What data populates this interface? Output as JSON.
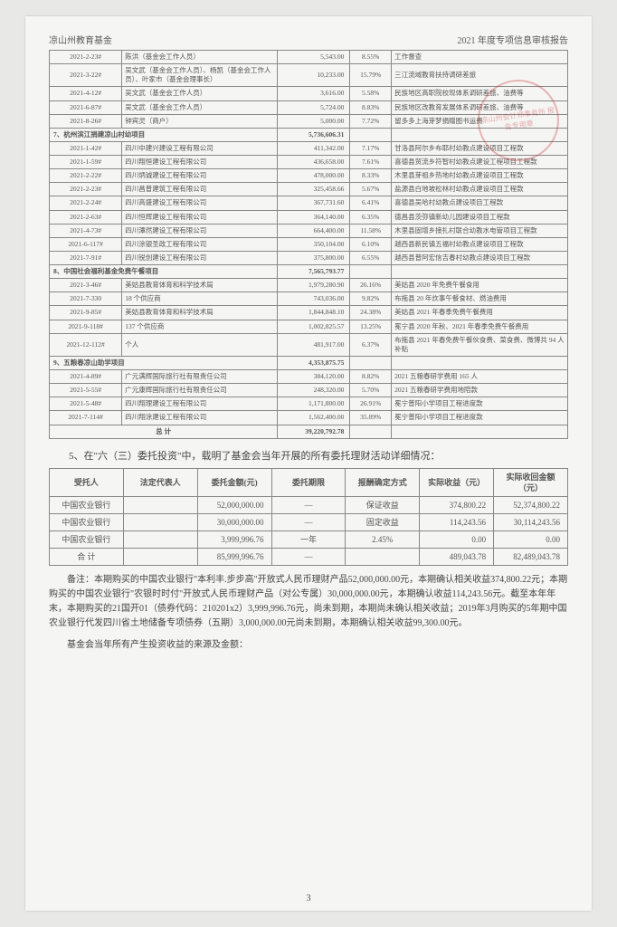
{
  "header": {
    "left": "凉山州教育基金",
    "right": "2021 年度专项信息审核报告"
  },
  "main_table": [
    {
      "date": "2021-2-23#",
      "entity": "陈洪（基金会工作人员）",
      "amount": "5,543.00",
      "pct": "8.55%",
      "purpose": "工作督查"
    },
    {
      "date": "2021-3-22#",
      "entity": "吴文武（基金会工作人员）、杨凯（基金会工作人员）、叶家市（基金会理事长）",
      "amount": "10,233.00",
      "pct": "15.79%",
      "purpose": "三江流域教育扶持调研差旅"
    },
    {
      "date": "2021-4-12#",
      "entity": "吴文武（基金会工作人员）",
      "amount": "3,616.00",
      "pct": "5.58%",
      "purpose": "民族地区高职院校现体系调研差旅、油费等"
    },
    {
      "date": "2021-6-87#",
      "entity": "吴文武（基金会工作人员）",
      "amount": "5,724.00",
      "pct": "8.83%",
      "purpose": "民族地区改教育发展体系调研差旅、油费等"
    },
    {
      "date": "2021-8-26#",
      "entity": "钟宾灵（商户）",
      "amount": "5,000.00",
      "pct": "7.72%",
      "purpose": "留多多上海芽梦捐赠图书运费"
    },
    {
      "section": "7、杭州滨江捐建凉山村幼项目",
      "amount": "5,736,606.31"
    },
    {
      "date": "2021-1-42#",
      "entity": "四川中建兴建设工程有限公司",
      "amount": "411,342.00",
      "pct": "7.17%",
      "purpose": "甘洛县阿尔乡布耶村幼教点建设项目工程款"
    },
    {
      "date": "2021-1-59#",
      "entity": "四川翔恒建设工程有限公司",
      "amount": "436,658.00",
      "pct": "7.61%",
      "purpose": "喜德县贸流乡符智村幼教点建设工程项目工程款"
    },
    {
      "date": "2021-2-22#",
      "entity": "四川炳诚建设工程有限公司",
      "amount": "478,000.00",
      "pct": "8.33%",
      "purpose": "木里县芽祖乡热地村幼教点建设项目工程款"
    },
    {
      "date": "2021-2-23#",
      "entity": "四川昌普建筑工程有限公司",
      "amount": "325,458.66",
      "pct": "5.67%",
      "purpose": "盐源县白地坡松林村幼教点建设项目工程款"
    },
    {
      "date": "2021-2-24#",
      "entity": "四川高盛建设工程有限公司",
      "amount": "367,731.60",
      "pct": "6.41%",
      "purpose": "喜德县吴哈村幼教点建设项目工程款"
    },
    {
      "date": "2021-2-63#",
      "entity": "四川恒辉建设工程有限公司",
      "amount": "364,140.00",
      "pct": "6.35%",
      "purpose": "德昌县茨弥镇新幼儿园建设项目工程款"
    },
    {
      "date": "2021-4-73#",
      "entity": "四川潭然建设工程有限公司",
      "amount": "664,400.00",
      "pct": "11.58%",
      "purpose": "木里县固增乡接扎村联合幼教水电管项目工程款"
    },
    {
      "date": "2021-6-117#",
      "entity": "四川涂银圣政工程有限公司",
      "amount": "350,104.00",
      "pct": "6.10%",
      "purpose": "越西县新民镇五福村幼教点建设项目工程款"
    },
    {
      "date": "2021-7-91#",
      "entity": "四川锐创建设工程有限公司",
      "amount": "375,800.00",
      "pct": "6.55%",
      "purpose": "越西县普阿宏信吉春村幼教点建设项目工程款"
    },
    {
      "section": "8、中国社会福利基金免费午餐项目",
      "amount": "7,565,793.77"
    },
    {
      "date": "2021-3-46#",
      "entity": "美姑县教育体育和科学技术局",
      "amount": "1,979,280.90",
      "pct": "26.16%",
      "purpose": "美姑县 2020 年免费午餐食用"
    },
    {
      "date": "2021-7-330",
      "entity": "18 个供应商",
      "amount": "743,036.00",
      "pct": "9.82%",
      "purpose": "布拖县 20 年炊事午餐食材、燃油费用"
    },
    {
      "date": "2021-9-85#",
      "entity": "美姑县教育体育和科学技术局",
      "amount": "1,844,848.10",
      "pct": "24.38%",
      "purpose": "美姑县 2021 年春季免费午餐费用"
    },
    {
      "date": "2021-9-118#",
      "entity": "137 个供应商",
      "amount": "1,002,825.57",
      "pct": "13.25%",
      "purpose": "冕宁县 2020 年秋、2021 年春季免费午餐费用"
    },
    {
      "date": "2021-12-112#",
      "entity": "个人",
      "amount": "481,917.00",
      "pct": "6.37%",
      "purpose": "布拖县 2021 年春免费午餐伙食费、菜食费、微博共 94 人补贴"
    },
    {
      "section": "9、五粮春凉山助学项目",
      "amount": "4,353,875.75"
    },
    {
      "date": "2021-4-89#",
      "entity": "广元满辉国际旅行社有限责任公司",
      "amount": "384,120.00",
      "pct": "8.82%",
      "purpose": "2021 五粮春研学费用 165 人"
    },
    {
      "date": "2021-5-55#",
      "entity": "广元康辉国际旅行社有限责任公司",
      "amount": "248,320.00",
      "pct": "5.70%",
      "purpose": "2021 五粮春研学费用地陪款"
    },
    {
      "date": "2021-5-48#",
      "entity": "四川翔理建设工程有限公司",
      "amount": "1,171,800.00",
      "pct": "26.91%",
      "purpose": "冕宁普阳小学项目工程进度款"
    },
    {
      "date": "2021-7-114#",
      "entity": "四川翔涂建设工程有限公司",
      "amount": "1,562,400.00",
      "pct": "35.89%",
      "purpose": "冕宁普阳小学项目工程进度款"
    },
    {
      "total": "总  计",
      "amount": "39,220,792.78"
    }
  ],
  "section5_intro": "5、在\"六（三）委托投资\"中，载明了基金会当年开展的所有委托理财活动详细情况：",
  "bank_table": {
    "headers": [
      "受托人",
      "法定代表人",
      "委托金额(元)",
      "委托期限",
      "报酬确定方式",
      "实际收益（元）",
      "实际收回金额（元）"
    ],
    "rows": [
      [
        "中国农业银行",
        "",
        "52,000,000.00",
        "—",
        "保证收益",
        "374,800.22",
        "52,374,800.22"
      ],
      [
        "中国农业银行",
        "",
        "30,000,000.00",
        "—",
        "固定收益",
        "114,243.56",
        "30,114,243.56"
      ],
      [
        "中国农业银行",
        "",
        "3,999,996.76",
        "一年",
        "2.45%",
        "0.00",
        "0.00"
      ],
      [
        "合  计",
        "",
        "85,999,996.76",
        "—",
        "",
        "489,043.78",
        "82,489,043.78"
      ]
    ]
  },
  "notes": [
    "备注：本期购买的中国农业银行\"本利丰.步步高\"开放式人民币理财产品52,000,000.00元，本期确认相关收益374,800.22元；本期购买的中国农业银行\"农银时时付\"开放式人民币理财产品（对公专属）30,000,000.00元，本期确认收益114,243.56元。截至本年年末，本期购买的21国开01（债券代码：210201x2）3,999,996.76元，尚未到期，本期尚未确认相关收益；2019年3月购买的5年期中国农业银行代发四川省土地储备专项债券（五期）3,000,000.00元尚未到期，本期确认相关收益99,300.00元。",
    "基金会当年所有产生投资收益的来源及金额："
  ],
  "page_num": "3",
  "stamp_text": "凉山州会计师事务所\n报告专用章"
}
